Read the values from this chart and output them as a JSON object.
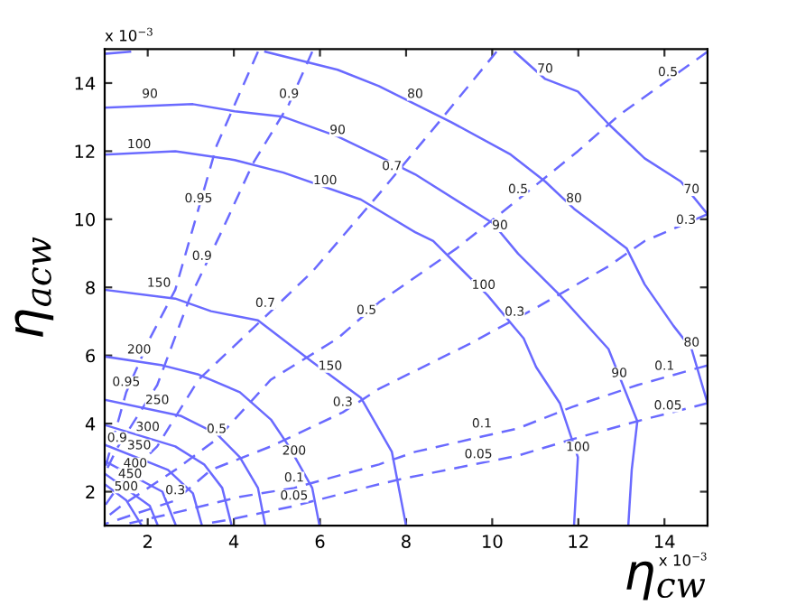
{
  "chart_data": {
    "type": "line",
    "xlabel": "η$_{cw}$",
    "ylabel": "η$_{acw}$",
    "xlim": [
      1,
      15
    ],
    "ylim": [
      1,
      15
    ],
    "xticks": [
      2,
      4,
      6,
      8,
      10,
      12,
      14
    ],
    "yticks": [
      2,
      4,
      6,
      8,
      10,
      12,
      14
    ],
    "grid": false,
    "legend": false,
    "series": [
      {
        "color": "#6a6aff",
        "line_style": "solid",
        "x": [
          10.52,
          11.23,
          11.99,
          12.7,
          13.54,
          14.38,
          15.0
        ],
        "values": [
          14.92,
          14.12,
          13.75,
          12.8,
          11.79,
          11.11,
          10.15
        ]
      },
      {
        "color": "#6a6aff",
        "line_style": "solid",
        "x": [
          1.0,
          1.59,
          null,
          4.73,
          6.41,
          7.37,
          8.21,
          9.05,
          10.43,
          11.23,
          11.9,
          13.12,
          13.54,
          14.21,
          14.63,
          15.0
        ],
        "values": [
          14.86,
          14.92,
          null,
          14.92,
          14.39,
          13.91,
          13.38,
          12.85,
          11.9,
          11.11,
          10.31,
          9.15,
          8.09,
          6.87,
          6.19,
          4.6
        ]
      },
      {
        "color": "#6a6aff",
        "line_style": "solid",
        "x": [
          1.0,
          3.05,
          4.02,
          5.15,
          6.41,
          7.37,
          8.21,
          10.01,
          10.6,
          11.57,
          12.7,
          13.37,
          13.24,
          13.16
        ],
        "values": [
          13.28,
          13.38,
          13.17,
          13.01,
          12.43,
          11.85,
          11.32,
          9.89,
          8.99,
          7.77,
          6.19,
          4.07,
          2.64,
          1.0
        ]
      },
      {
        "color": "#6a6aff",
        "line_style": "solid",
        "x": [
          1.0,
          2.64,
          4.02,
          5.15,
          6.95,
          8.21,
          8.63,
          9.89,
          10.73,
          11.02,
          11.57,
          11.99,
          11.9
        ],
        "values": [
          11.9,
          12.0,
          11.74,
          11.37,
          10.58,
          9.62,
          9.36,
          7.77,
          6.5,
          5.66,
          4.6,
          3.01,
          1.0
        ]
      },
      {
        "color": "#6a6aff",
        "line_style": "solid",
        "x": [
          1.0,
          2.64,
          3.47,
          4.56,
          5.82,
          6.95,
          7.67,
          8.0
        ],
        "values": [
          7.93,
          7.67,
          7.3,
          7.03,
          5.81,
          4.76,
          3.17,
          1.0
        ]
      },
      {
        "color": "#6a6aff",
        "line_style": "solid",
        "x": [
          1.0,
          2.34,
          3.18,
          4.14,
          4.86,
          5.28,
          5.82,
          5.99
        ],
        "values": [
          5.97,
          5.71,
          5.44,
          4.92,
          4.12,
          3.33,
          2.11,
          1.0
        ]
      },
      {
        "color": "#6a6aff",
        "line_style": "solid",
        "x": [
          1.0,
          2.76,
          3.6,
          4.14,
          4.56,
          4.73
        ],
        "values": [
          4.7,
          4.23,
          3.7,
          3.01,
          2.11,
          1.0
        ]
      },
      {
        "color": "#6a6aff",
        "line_style": "solid",
        "x": [
          1.0,
          2.64,
          3.31,
          3.73,
          3.94
        ],
        "values": [
          3.96,
          3.33,
          2.8,
          2.11,
          1.05
        ]
      },
      {
        "color": "#6a6aff",
        "line_style": "solid",
        "x": [
          1.0,
          2.47,
          3.05,
          3.26
        ],
        "values": [
          3.38,
          2.64,
          1.95,
          1.0
        ]
      },
      {
        "color": "#6a6aff",
        "line_style": "solid",
        "x": [
          1.0,
          2.34,
          2.64
        ],
        "values": [
          2.9,
          2.0,
          1.05
        ]
      },
      {
        "color": "#6a6aff",
        "line_style": "solid",
        "x": [
          1.0,
          2.05,
          2.22
        ],
        "values": [
          2.53,
          1.58,
          1.05
        ]
      },
      {
        "color": "#6a6aff",
        "line_style": "solid",
        "x": [
          1.0,
          1.5,
          1.84
        ],
        "values": [
          2.22,
          1.75,
          1.05
        ]
      },
      {
        "color": "#6a6aff",
        "line_style": "dashed",
        "x": [
          4.56,
          3.6,
          3.18,
          2.64,
          2.05,
          1.5,
          1.0
        ],
        "values": [
          14.92,
          12.16,
          10.31,
          7.93,
          6.5,
          4.92,
          2.64
        ]
      },
      {
        "color": "#6a6aff",
        "line_style": "dashed",
        "x": [
          5.82,
          5.28,
          4.44,
          3.73,
          2.97,
          2.22,
          1.29,
          1.0
        ],
        "values": [
          14.92,
          13.38,
          11.63,
          9.68,
          7.67,
          5.13,
          3.28,
          2.53
        ]
      },
      {
        "color": "#6a6aff",
        "line_style": "dashed",
        "x": [
          10.1,
          8.76,
          7.37,
          5.82,
          4.73,
          3.18,
          2.22,
          1.38,
          1.0
        ],
        "values": [
          14.92,
          12.85,
          10.74,
          8.46,
          7.14,
          5.29,
          3.33,
          2.27,
          1.58
        ]
      },
      {
        "color": "#6a6aff",
        "line_style": "dashed",
        "x": [
          15.0,
          12.95,
          11.99,
          10.6,
          9.18,
          7.37,
          6.41,
          4.86,
          3.6,
          2.64,
          1.38,
          1.0
        ],
        "values": [
          14.92,
          13.06,
          12.0,
          10.58,
          9.15,
          7.56,
          6.5,
          5.29,
          3.54,
          2.64,
          1.58,
          1.21
        ]
      },
      {
        "color": "#6a6aff",
        "line_style": "dashed",
        "x": [
          15.0,
          13.54,
          12.7,
          11.02,
          9.47,
          7.37,
          6.53,
          4.86,
          3.47,
          2.64,
          1.0
        ],
        "values": [
          10.15,
          9.36,
          8.62,
          7.4,
          6.34,
          5.02,
          4.33,
          3.33,
          2.64,
          1.74,
          1.05
        ]
      },
      {
        "color": "#6a6aff",
        "line_style": "dashed",
        "x": [
          15.0,
          13.37,
          11.86,
          10.6,
          8.21,
          7.37,
          5.4,
          4.14,
          2.76,
          1.5
        ],
        "values": [
          5.71,
          5.13,
          4.49,
          3.86,
          3.17,
          2.8,
          2.11,
          1.85,
          1.42,
          1.05
        ]
      },
      {
        "color": "#6a6aff",
        "line_style": "dashed",
        "x": [
          15.0,
          13.37,
          11.86,
          10.6,
          7.92,
          7.37,
          5.4,
          4.02,
          3.31
        ],
        "values": [
          4.6,
          4.07,
          3.54,
          3.06,
          2.38,
          2.22,
          1.58,
          1.21,
          1.05
        ]
      }
    ],
    "annotations": [
      "x 10$^{−3}$",
      "x 10$^{−3}$",
      {
        "text": "70",
        "x": 11.23,
        "y": 14.12
      },
      {
        "text": "70",
        "x": 14.63,
        "y": 10.58
      },
      {
        "text": "80",
        "x": 8.21,
        "y": 13.38
      },
      {
        "text": "80",
        "x": 11.9,
        "y": 10.31
      },
      {
        "text": "80",
        "x": 14.63,
        "y": 6.08
      },
      {
        "text": "90",
        "x": 2.05,
        "y": 13.38
      },
      {
        "text": "90",
        "x": 6.41,
        "y": 12.32
      },
      {
        "text": "90",
        "x": 10.18,
        "y": 9.52
      },
      {
        "text": "90",
        "x": 12.95,
        "y": 5.18
      },
      {
        "text": "100",
        "x": 1.8,
        "y": 11.9
      },
      {
        "text": "100",
        "x": 6.12,
        "y": 10.84
      },
      {
        "text": "100",
        "x": 9.8,
        "y": 7.77
      },
      {
        "text": "100",
        "x": 11.99,
        "y": 3.01
      },
      {
        "text": "150",
        "x": 2.26,
        "y": 7.83
      },
      {
        "text": "150",
        "x": 6.24,
        "y": 5.39
      },
      {
        "text": "200",
        "x": 1.8,
        "y": 5.87
      },
      {
        "text": "200",
        "x": 5.4,
        "y": 2.9
      },
      {
        "text": "250",
        "x": 2.22,
        "y": 4.39
      },
      {
        "text": "300",
        "x": 2.0,
        "y": 3.6
      },
      {
        "text": "350",
        "x": 1.8,
        "y": 3.06
      },
      {
        "text": "400",
        "x": 1.71,
        "y": 2.53
      },
      {
        "text": "450",
        "x": 1.59,
        "y": 2.22
      },
      {
        "text": "500",
        "x": 1.5,
        "y": 1.85
      },
      {
        "text": "0.95",
        "x": 3.18,
        "y": 10.31
      },
      {
        "text": "0.95",
        "x": 1.5,
        "y": 4.92
      },
      {
        "text": "0.9",
        "x": 5.28,
        "y": 13.38
      },
      {
        "text": "0.9",
        "x": 3.26,
        "y": 8.62
      },
      {
        "text": "0.9",
        "x": 1.29,
        "y": 3.28
      },
      {
        "text": "0.7",
        "x": 7.67,
        "y": 11.26
      },
      {
        "text": "0.7",
        "x": 4.73,
        "y": 7.24
      },
      {
        "text": "0.5",
        "x": 14.08,
        "y": 14.02
      },
      {
        "text": "0.5",
        "x": 10.6,
        "y": 10.58
      },
      {
        "text": "0.5",
        "x": 7.08,
        "y": 7.03
      },
      {
        "text": "0.5",
        "x": 3.6,
        "y": 3.54
      },
      {
        "text": "0.3",
        "x": 14.5,
        "y": 9.68
      },
      {
        "text": "0.3",
        "x": 10.52,
        "y": 6.98
      },
      {
        "text": "0.3",
        "x": 6.53,
        "y": 4.33
      },
      {
        "text": "0.3",
        "x": 2.64,
        "y": 1.74
      },
      {
        "text": "0.1",
        "x": 14.0,
        "y": 5.39
      },
      {
        "text": "0.1",
        "x": 9.76,
        "y": 3.7
      },
      {
        "text": "0.1",
        "x": 5.4,
        "y": 2.11
      },
      {
        "text": "0.05",
        "x": 14.08,
        "y": 4.23
      },
      {
        "text": "0.05",
        "x": 9.68,
        "y": 2.8
      },
      {
        "text": "0.05",
        "x": 5.4,
        "y": 1.58
      }
    ]
  }
}
